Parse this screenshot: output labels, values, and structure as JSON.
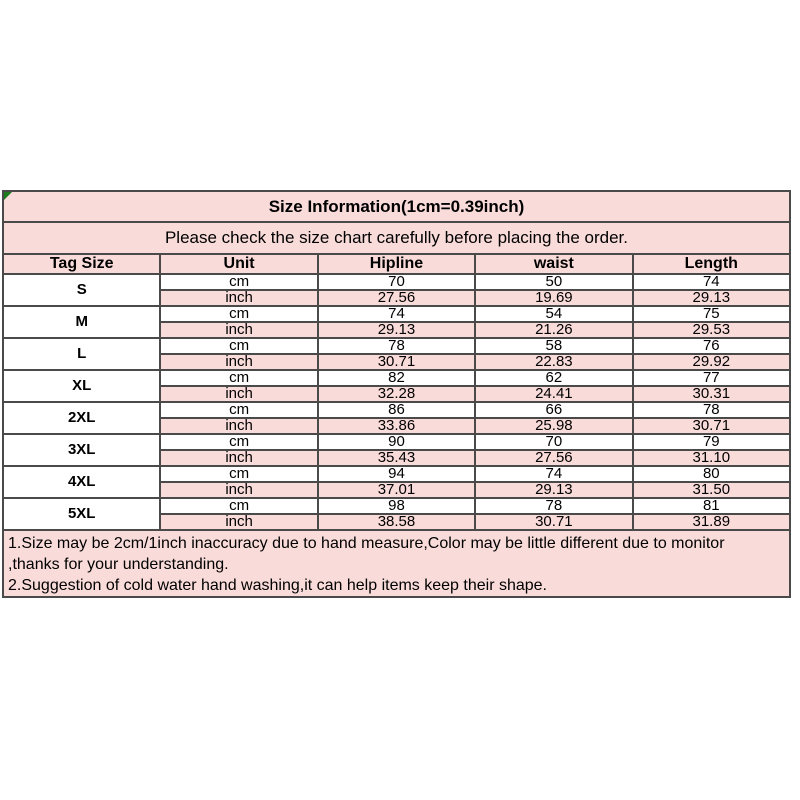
{
  "colors": {
    "row_pink": "#f9dcda",
    "border_dark": "#4a4a4a",
    "border_thin": "#6b6b6b",
    "marker_green": "#1e7a1e",
    "text": "#000000",
    "page_background": "#ffffff"
  },
  "chart_data": {
    "type": "table",
    "title": "Size Information(1cm=0.39inch)",
    "subtitle": "Please check the size chart carefully before placing the order.",
    "columns": [
      "Tag Size",
      "Unit",
      "Hipline",
      "waist",
      "Length"
    ],
    "unit_labels": [
      "cm",
      "inch"
    ],
    "sizes": [
      {
        "size": "S",
        "cm": {
          "hipline": "70",
          "waist": "50",
          "length": "74"
        },
        "inch": {
          "hipline": "27.56",
          "waist": "19.69",
          "length": "29.13"
        }
      },
      {
        "size": "M",
        "cm": {
          "hipline": "74",
          "waist": "54",
          "length": "75"
        },
        "inch": {
          "hipline": "29.13",
          "waist": "21.26",
          "length": "29.53"
        }
      },
      {
        "size": "L",
        "cm": {
          "hipline": "78",
          "waist": "58",
          "length": "76"
        },
        "inch": {
          "hipline": "30.71",
          "waist": "22.83",
          "length": "29.92"
        }
      },
      {
        "size": "XL",
        "cm": {
          "hipline": "82",
          "waist": "62",
          "length": "77"
        },
        "inch": {
          "hipline": "32.28",
          "waist": "24.41",
          "length": "30.31"
        }
      },
      {
        "size": "2XL",
        "cm": {
          "hipline": "86",
          "waist": "66",
          "length": "78"
        },
        "inch": {
          "hipline": "33.86",
          "waist": "25.98",
          "length": "30.71"
        }
      },
      {
        "size": "3XL",
        "cm": {
          "hipline": "90",
          "waist": "70",
          "length": "79"
        },
        "inch": {
          "hipline": "35.43",
          "waist": "27.56",
          "length": "31.10"
        }
      },
      {
        "size": "4XL",
        "cm": {
          "hipline": "94",
          "waist": "74",
          "length": "80"
        },
        "inch": {
          "hipline": "37.01",
          "waist": "29.13",
          "length": "31.50"
        }
      },
      {
        "size": "5XL",
        "cm": {
          "hipline": "98",
          "waist": "78",
          "length": "81"
        },
        "inch": {
          "hipline": "38.58",
          "waist": "30.71",
          "length": "31.89"
        }
      }
    ],
    "notes": [
      "1.Size may be 2cm/1inch inaccuracy due to hand measure,Color may be little different due to monitor",
      ",thanks for your understanding.",
      "2.Suggestion of cold water hand washing,it can help items keep their shape."
    ]
  }
}
